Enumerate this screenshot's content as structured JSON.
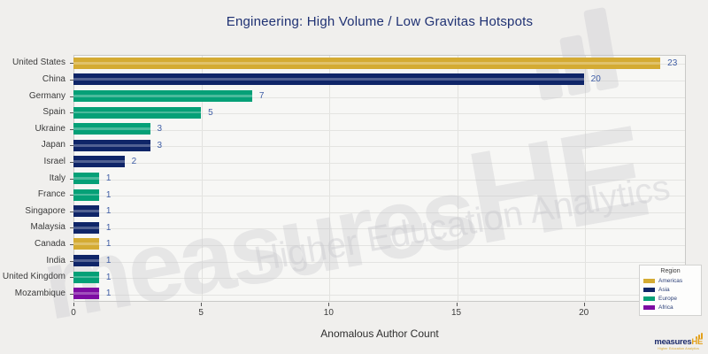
{
  "title": "Engineering: High Volume / Low Gravitas Hotspots",
  "xaxis_title": "Anomalous Author Count",
  "watermark": {
    "brand": "measures",
    "brand_suffix": "HE",
    "tagline": "Higher Education Analytics"
  },
  "logo": {
    "brand": "measures",
    "suffix": "HE",
    "tagline": "Higher Education Analytics"
  },
  "legend": {
    "title": "Region",
    "items": [
      {
        "label": "Americas",
        "color": "#d4ab33"
      },
      {
        "label": "Asia",
        "color": "#0f2568"
      },
      {
        "label": "Europe",
        "color": "#05a077"
      },
      {
        "label": "Africa",
        "color": "#7d0ca3"
      }
    ]
  },
  "chart_data": {
    "type": "bar",
    "orientation": "horizontal",
    "title": "Engineering: High Volume / Low Gravitas Hotspots",
    "xlabel": "Anomalous Author Count",
    "ylabel": "",
    "xlim": [
      0,
      24
    ],
    "xticks": [
      0,
      5,
      10,
      15,
      20
    ],
    "grid": true,
    "legend_position": "bottom-right",
    "categories": [
      "United States",
      "China",
      "Germany",
      "Spain",
      "Ukraine",
      "Japan",
      "Israel",
      "Italy",
      "France",
      "Singapore",
      "Malaysia",
      "Canada",
      "India",
      "United Kingdom",
      "Mozambique"
    ],
    "values": [
      23,
      20,
      7,
      5,
      3,
      3,
      2,
      1,
      1,
      1,
      1,
      1,
      1,
      1,
      1
    ],
    "regions": [
      "Americas",
      "Asia",
      "Europe",
      "Europe",
      "Europe",
      "Asia",
      "Asia",
      "Europe",
      "Europe",
      "Asia",
      "Asia",
      "Americas",
      "Asia",
      "Europe",
      "Africa"
    ],
    "region_colors": {
      "Americas": "#d4ab33",
      "Asia": "#0f2568",
      "Europe": "#05a077",
      "Africa": "#7d0ca3"
    },
    "value_label_color": "#3f5ea6"
  }
}
